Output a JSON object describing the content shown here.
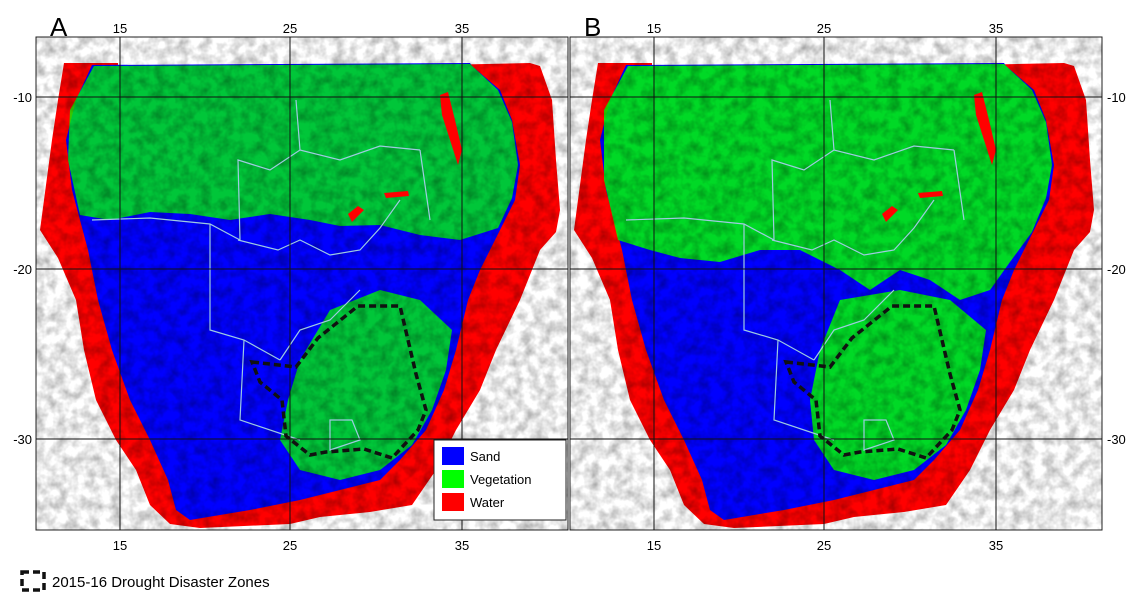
{
  "panels": [
    {
      "id": "A",
      "label": "A",
      "x_ticks": [
        "15",
        "25",
        "35"
      ],
      "y_ticks": [
        "-10",
        "-20",
        "-30"
      ],
      "y_tick_side": "left",
      "vegetation_level": 0.45
    },
    {
      "id": "B",
      "label": "B",
      "x_ticks": [
        "15",
        "25",
        "35"
      ],
      "y_ticks": [
        "-10",
        "-20",
        "-30"
      ],
      "y_tick_side": "right",
      "vegetation_level": 0.6
    }
  ],
  "legend": {
    "items": [
      {
        "label": "Sand",
        "color": "#0000ff"
      },
      {
        "label": "Vegetation",
        "color": "#00ff00"
      },
      {
        "label": "Water",
        "color": "#ff0000"
      }
    ]
  },
  "footer_legend": {
    "label": "2015-16 Drought Disaster Zones"
  },
  "colors": {
    "sand": "#0000ff",
    "vegetation": "#00ff00",
    "water": "#ff0000",
    "border": "#9ecbe0",
    "grid": "#111111",
    "drought_outline": "#111111"
  }
}
